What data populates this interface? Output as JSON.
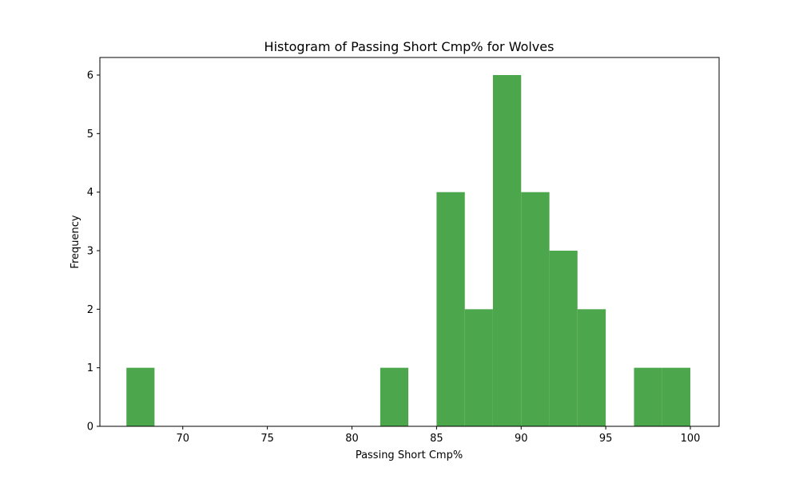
{
  "chart_data": {
    "type": "bar",
    "title": "Histogram of Passing Short Cmp% for Wolves",
    "xlabel": "Passing Short Cmp%",
    "ylabel": "Frequency",
    "bar_color": "#4ca64c",
    "xlim": [
      65.1,
      101.7
    ],
    "ylim": [
      0,
      6.3
    ],
    "xticks": [
      70,
      75,
      80,
      85,
      90,
      95,
      100
    ],
    "yticks": [
      0,
      1,
      2,
      3,
      4,
      5,
      6
    ],
    "grid": false,
    "legend": "none",
    "bins": [
      {
        "x0": 66.67,
        "x1": 68.33,
        "count": 1
      },
      {
        "x0": 68.33,
        "x1": 70.0,
        "count": 0
      },
      {
        "x0": 70.0,
        "x1": 71.67,
        "count": 0
      },
      {
        "x0": 71.67,
        "x1": 73.33,
        "count": 0
      },
      {
        "x0": 73.33,
        "x1": 75.0,
        "count": 0
      },
      {
        "x0": 75.0,
        "x1": 76.67,
        "count": 0
      },
      {
        "x0": 76.67,
        "x1": 78.33,
        "count": 0
      },
      {
        "x0": 78.33,
        "x1": 80.0,
        "count": 0
      },
      {
        "x0": 80.0,
        "x1": 81.67,
        "count": 0
      },
      {
        "x0": 81.67,
        "x1": 83.33,
        "count": 1
      },
      {
        "x0": 83.33,
        "x1": 85.0,
        "count": 0
      },
      {
        "x0": 85.0,
        "x1": 86.67,
        "count": 4
      },
      {
        "x0": 86.67,
        "x1": 88.33,
        "count": 2
      },
      {
        "x0": 88.33,
        "x1": 90.0,
        "count": 6
      },
      {
        "x0": 90.0,
        "x1": 91.67,
        "count": 4
      },
      {
        "x0": 91.67,
        "x1": 93.33,
        "count": 3
      },
      {
        "x0": 93.33,
        "x1": 95.0,
        "count": 2
      },
      {
        "x0": 95.0,
        "x1": 96.67,
        "count": 0
      },
      {
        "x0": 96.67,
        "x1": 98.33,
        "count": 1
      },
      {
        "x0": 98.33,
        "x1": 100.0,
        "count": 1
      }
    ]
  }
}
